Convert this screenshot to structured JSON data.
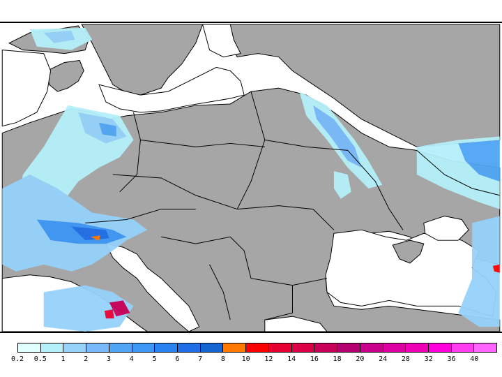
{
  "map": {
    "type": "precipitation-map",
    "region": "Central and Eastern Europe",
    "colors": {
      "land": "#a6a6a6",
      "water": "#ffffff",
      "borders": "#000000"
    }
  },
  "legend": {
    "ticks": [
      "0.2",
      "0.5",
      "1",
      "2",
      "3",
      "4",
      "5",
      "6",
      "7",
      "8",
      "10",
      "12",
      "14",
      "16",
      "18",
      "20",
      "24",
      "28",
      "32",
      "36",
      "40"
    ],
    "colors": [
      "#e0ffff",
      "#b4f0fa",
      "#96d2fa",
      "#78b9fa",
      "#50a5f5",
      "#3c97f5",
      "#2882f0",
      "#1e6ee6",
      "#1464d2",
      "#ff7800",
      "#fa0000",
      "#e60032",
      "#dc0046",
      "#c8005a",
      "#b4006e",
      "#c8008c",
      "#dc00a0",
      "#f000b4",
      "#ff00dc",
      "#ff3cf0",
      "#ff64ff"
    ]
  }
}
